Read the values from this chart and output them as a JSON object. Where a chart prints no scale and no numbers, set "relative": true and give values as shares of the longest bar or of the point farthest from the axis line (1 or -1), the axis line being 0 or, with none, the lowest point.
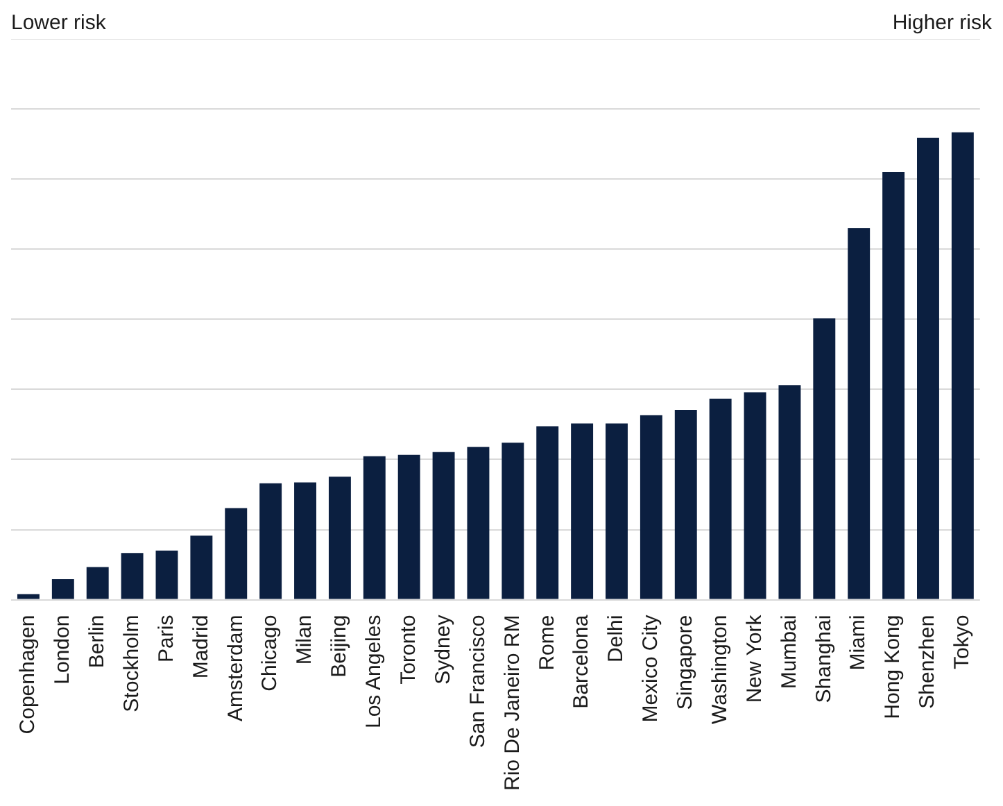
{
  "chart_data": {
    "type": "bar",
    "relative": true,
    "grid": "y",
    "legend": false,
    "annotations": [
      "Lower risk",
      "Higher risk"
    ],
    "categories": [
      "Copenhagen",
      "London",
      "Berlin",
      "Stockholm",
      "Paris",
      "Madrid",
      "Amsterdam",
      "Chicago",
      "Milan",
      "Beijing",
      "Los Angeles",
      "Toronto",
      "Sydney",
      "San Francisco",
      "Rio De Janeiro RM",
      "Rome",
      "Barcelona",
      "Delhi",
      "Mexico City",
      "Singapore",
      "Washington",
      "New York",
      "Mumbai",
      "Shanghai",
      "Miami",
      "Hong Kong",
      "Shenzhen",
      "Tokyo"
    ],
    "color": "#0b1f40",
    "values": [
      0.012,
      0.044,
      0.07,
      0.1,
      0.105,
      0.137,
      0.196,
      0.249,
      0.251,
      0.263,
      0.307,
      0.31,
      0.316,
      0.327,
      0.336,
      0.371,
      0.377,
      0.377,
      0.395,
      0.406,
      0.43,
      0.444,
      0.459,
      0.602,
      0.795,
      0.915,
      0.988,
      1
    ]
  }
}
